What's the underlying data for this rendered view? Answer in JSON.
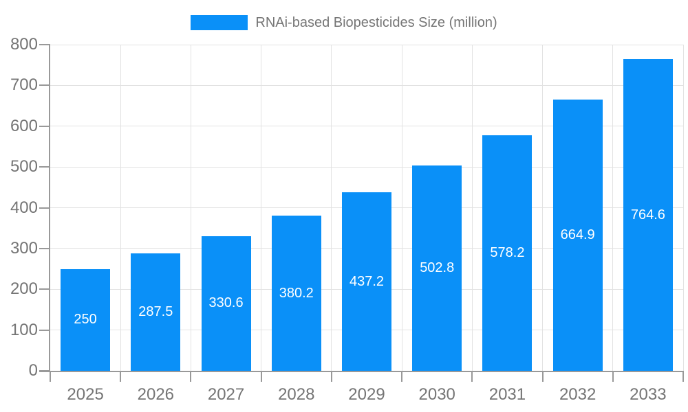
{
  "chart_data": {
    "type": "bar",
    "title": "RNAi-based Biopesticides Size (million)",
    "legend_entries": [
      "RNAi-based Biopesticides Size (million)"
    ],
    "legend_position": "top-center",
    "categories": [
      "2025",
      "2026",
      "2027",
      "2028",
      "2029",
      "2030",
      "2031",
      "2032",
      "2033"
    ],
    "values": [
      250,
      287.5,
      330.6,
      380.2,
      437.2,
      502.8,
      578.2,
      664.9,
      764.6
    ],
    "xlabel": "",
    "ylabel": "",
    "ylim": [
      0,
      800
    ],
    "ytick_interval": 100,
    "grid": true,
    "value_labels_inside_bars": true,
    "colors": {
      "bar": "#0a90f8",
      "axis": "#999999",
      "grid": "#e2e2e2",
      "text": "#757575",
      "value_label": "#ffffff",
      "background": "#ffffff"
    }
  }
}
